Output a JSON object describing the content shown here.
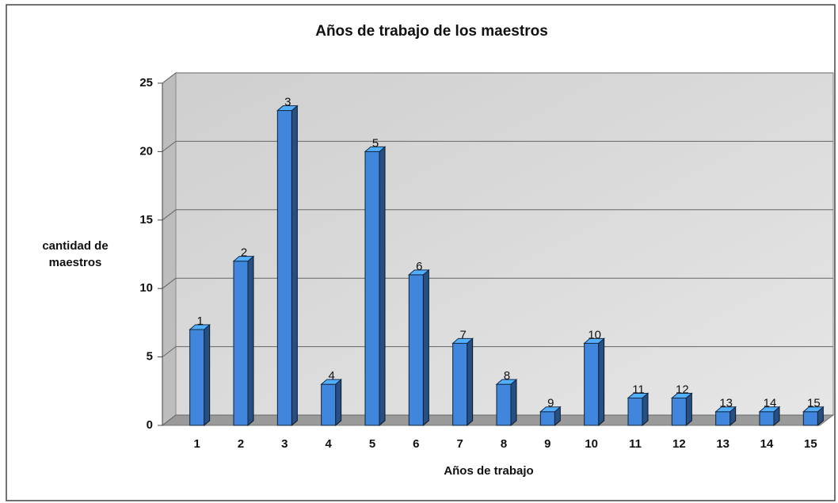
{
  "chart_data": {
    "type": "bar3d",
    "title": "Años de trabajo de los maestros",
    "xlabel": "Años de trabajo",
    "ylabel": "cantidad de maestros",
    "categories": [
      "1",
      "2",
      "3",
      "4",
      "5",
      "6",
      "7",
      "8",
      "9",
      "10",
      "11",
      "12",
      "13",
      "14",
      "15"
    ],
    "values": [
      7,
      12,
      23,
      3,
      20,
      11,
      6,
      3,
      1,
      6,
      2,
      2,
      1,
      1,
      1
    ],
    "color": "#3f86dc",
    "ylim": [
      0,
      25
    ],
    "yticks": [
      0,
      5,
      10,
      15,
      20,
      25
    ],
    "grid": true
  }
}
